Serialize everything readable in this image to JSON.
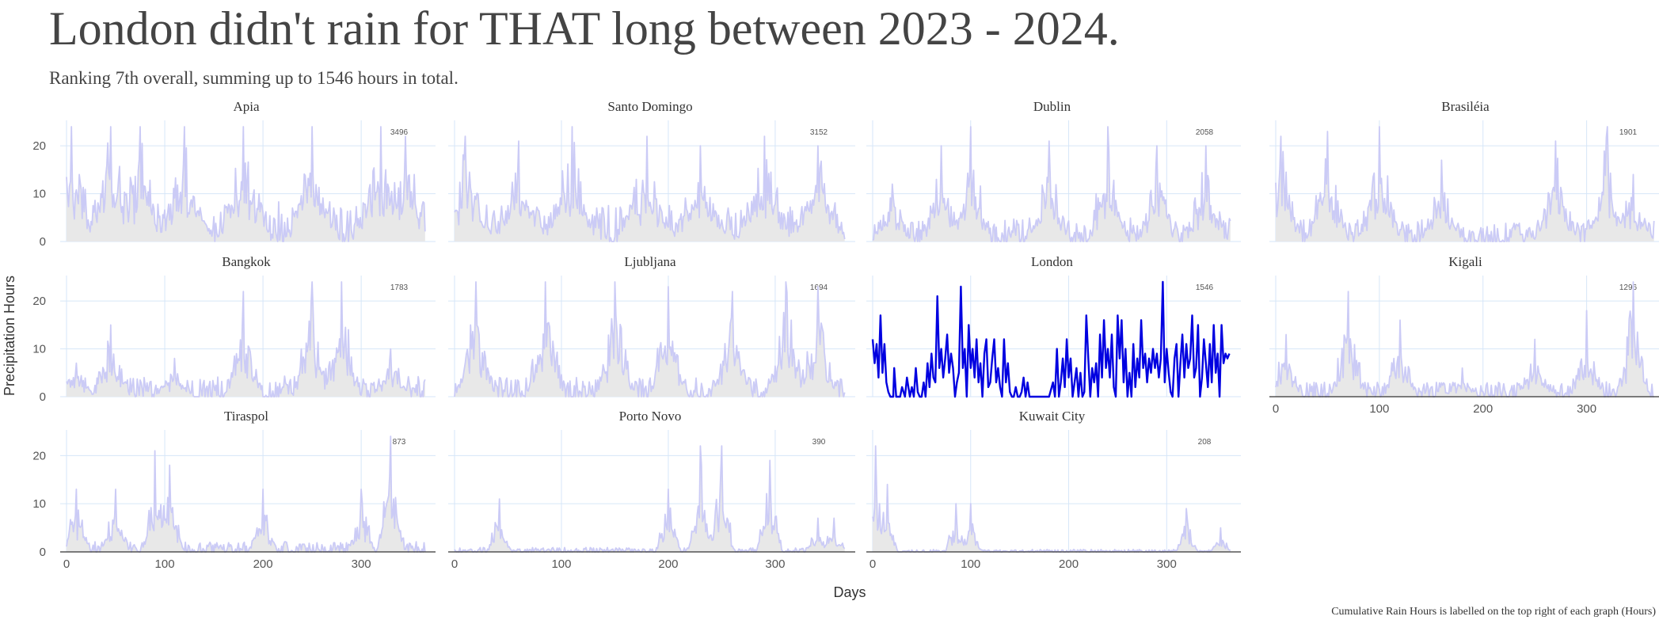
{
  "title": "London didn't rain for THAT long between 2023 - 2024.",
  "subtitle": "Ranking 7th overall, summing up to 1546 hours in total.",
  "caption": "Cumulative Rain Hours is labelled on the top right of each graph (Hours)",
  "colors": {
    "highlight_line": "#0000e0",
    "muted_line": "#cbcbf6",
    "area_fill": "#e8e8e8",
    "gridline": "#d6e6f8",
    "axis_line": "#333333"
  },
  "chart_data": {
    "type": "line",
    "layout": "facet grid, 4 columns, 3 rows",
    "xlabel": "Days",
    "ylabel": "Precipitation Hours",
    "xlim": [
      0,
      366
    ],
    "ylim": [
      0,
      24
    ],
    "x_ticks": [
      0,
      100,
      200,
      300
    ],
    "y_ticks": [
      0,
      10,
      20
    ],
    "grid": true,
    "legend": "none",
    "highlight": "London",
    "panels": [
      {
        "name": "Apia",
        "total": 3496,
        "peaks": [
          [
            5,
            24
          ],
          [
            45,
            24
          ],
          [
            75,
            24
          ],
          [
            120,
            24
          ],
          [
            180,
            24
          ],
          [
            250,
            24
          ],
          [
            320,
            24
          ],
          [
            345,
            22
          ]
        ]
      },
      {
        "name": "Santo Domingo",
        "total": 3152,
        "peaks": [
          [
            10,
            22
          ],
          [
            60,
            21
          ],
          [
            110,
            24
          ],
          [
            180,
            22
          ],
          [
            230,
            20
          ],
          [
            290,
            22
          ],
          [
            340,
            20
          ]
        ]
      },
      {
        "name": "Dublin",
        "total": 2058,
        "peaks": [
          [
            20,
            12
          ],
          [
            70,
            20
          ],
          [
            100,
            24
          ],
          [
            180,
            21
          ],
          [
            240,
            24
          ],
          [
            290,
            20
          ],
          [
            340,
            20
          ]
        ]
      },
      {
        "name": "Brasiléia",
        "total": 1901,
        "peaks": [
          [
            5,
            22
          ],
          [
            50,
            23
          ],
          [
            100,
            24
          ],
          [
            160,
            17
          ],
          [
            270,
            21
          ],
          [
            320,
            24
          ],
          [
            345,
            14
          ]
        ]
      },
      {
        "name": "Bangkok",
        "total": 1783,
        "peaks": [
          [
            10,
            7
          ],
          [
            45,
            15
          ],
          [
            110,
            8
          ],
          [
            180,
            22
          ],
          [
            250,
            24
          ],
          [
            280,
            24
          ],
          [
            330,
            10
          ]
        ]
      },
      {
        "name": "Ljubljana",
        "total": 1694,
        "peaks": [
          [
            20,
            24
          ],
          [
            85,
            24
          ],
          [
            150,
            24
          ],
          [
            200,
            23
          ],
          [
            260,
            22
          ],
          [
            310,
            24
          ],
          [
            340,
            23
          ]
        ]
      },
      {
        "name": "London",
        "total": 1546,
        "series": [
          [
            0,
            12
          ],
          [
            2,
            7
          ],
          [
            4,
            11
          ],
          [
            6,
            4
          ],
          [
            8,
            17
          ],
          [
            10,
            5
          ],
          [
            12,
            11
          ],
          [
            14,
            3
          ],
          [
            16,
            1
          ],
          [
            18,
            0
          ],
          [
            21,
            0
          ],
          [
            22,
            6
          ],
          [
            24,
            0
          ],
          [
            28,
            0
          ],
          [
            30,
            2
          ],
          [
            33,
            0
          ],
          [
            35,
            4
          ],
          [
            38,
            0
          ],
          [
            40,
            2
          ],
          [
            42,
            0
          ],
          [
            44,
            6
          ],
          [
            46,
            1
          ],
          [
            48,
            0
          ],
          [
            50,
            0
          ],
          [
            52,
            3
          ],
          [
            54,
            0
          ],
          [
            56,
            7
          ],
          [
            58,
            2
          ],
          [
            60,
            9
          ],
          [
            62,
            4
          ],
          [
            64,
            3
          ],
          [
            66,
            21
          ],
          [
            68,
            6
          ],
          [
            70,
            10
          ],
          [
            72,
            4
          ],
          [
            74,
            8
          ],
          [
            76,
            13
          ],
          [
            78,
            5
          ],
          [
            80,
            9
          ],
          [
            82,
            6
          ],
          [
            84,
            0
          ],
          [
            86,
            3
          ],
          [
            88,
            5
          ],
          [
            90,
            23
          ],
          [
            92,
            6
          ],
          [
            94,
            10
          ],
          [
            96,
            0
          ],
          [
            98,
            15
          ],
          [
            100,
            6
          ],
          [
            102,
            10
          ],
          [
            104,
            4
          ],
          [
            106,
            12
          ],
          [
            108,
            3
          ],
          [
            110,
            7
          ],
          [
            112,
            0
          ],
          [
            114,
            9
          ],
          [
            116,
            12
          ],
          [
            118,
            2
          ],
          [
            120,
            3
          ],
          [
            122,
            8
          ],
          [
            124,
            12
          ],
          [
            126,
            3
          ],
          [
            128,
            6
          ],
          [
            130,
            2
          ],
          [
            132,
            0
          ],
          [
            134,
            12
          ],
          [
            136,
            3
          ],
          [
            138,
            7
          ],
          [
            140,
            1
          ],
          [
            142,
            0
          ],
          [
            144,
            0
          ],
          [
            146,
            2
          ],
          [
            148,
            0
          ],
          [
            150,
            0
          ],
          [
            152,
            1
          ],
          [
            154,
            4
          ],
          [
            156,
            0
          ],
          [
            158,
            3
          ],
          [
            160,
            0
          ],
          [
            170,
            0
          ],
          [
            180,
            0
          ],
          [
            184,
            3
          ],
          [
            186,
            0
          ],
          [
            188,
            10
          ],
          [
            190,
            0
          ],
          [
            192,
            3
          ],
          [
            194,
            8
          ],
          [
            196,
            2
          ],
          [
            198,
            12
          ],
          [
            200,
            4
          ],
          [
            202,
            8
          ],
          [
            204,
            0
          ],
          [
            206,
            3
          ],
          [
            208,
            6
          ],
          [
            210,
            0
          ],
          [
            212,
            5
          ],
          [
            214,
            0
          ],
          [
            216,
            1
          ],
          [
            218,
            17
          ],
          [
            220,
            8
          ],
          [
            222,
            0
          ],
          [
            224,
            6
          ],
          [
            226,
            3
          ],
          [
            228,
            7
          ],
          [
            230,
            0
          ],
          [
            232,
            13
          ],
          [
            234,
            4
          ],
          [
            236,
            16
          ],
          [
            238,
            6
          ],
          [
            240,
            10
          ],
          [
            242,
            4
          ],
          [
            244,
            13
          ],
          [
            246,
            2
          ],
          [
            248,
            0
          ],
          [
            250,
            17
          ],
          [
            252,
            8
          ],
          [
            254,
            16
          ],
          [
            256,
            3
          ],
          [
            258,
            10
          ],
          [
            260,
            0
          ],
          [
            262,
            5
          ],
          [
            264,
            0
          ],
          [
            266,
            11
          ],
          [
            268,
            2
          ],
          [
            270,
            8
          ],
          [
            272,
            4
          ],
          [
            274,
            16
          ],
          [
            276,
            6
          ],
          [
            278,
            9
          ],
          [
            280,
            3
          ],
          [
            282,
            8
          ],
          [
            284,
            5
          ],
          [
            286,
            10
          ],
          [
            288,
            6
          ],
          [
            290,
            9
          ],
          [
            292,
            4
          ],
          [
            294,
            8
          ],
          [
            296,
            24
          ],
          [
            298,
            3
          ],
          [
            300,
            10
          ],
          [
            302,
            5
          ],
          [
            304,
            1
          ],
          [
            306,
            0
          ],
          [
            308,
            8
          ],
          [
            310,
            11
          ],
          [
            312,
            0
          ],
          [
            314,
            7
          ],
          [
            316,
            13
          ],
          [
            318,
            4
          ],
          [
            320,
            11
          ],
          [
            322,
            6
          ],
          [
            324,
            8
          ],
          [
            326,
            17
          ],
          [
            328,
            4
          ],
          [
            330,
            6
          ],
          [
            332,
            15
          ],
          [
            334,
            0
          ],
          [
            336,
            4
          ],
          [
            338,
            12
          ],
          [
            340,
            7
          ],
          [
            342,
            2
          ],
          [
            344,
            11
          ],
          [
            346,
            3
          ],
          [
            348,
            15
          ],
          [
            350,
            5
          ],
          [
            352,
            9
          ],
          [
            354,
            0
          ],
          [
            356,
            15
          ],
          [
            358,
            7
          ],
          [
            360,
            9
          ],
          [
            362,
            8
          ],
          [
            364,
            9
          ]
        ]
      },
      {
        "name": "Kigali",
        "total": 1296,
        "peaks": [
          [
            10,
            13
          ],
          [
            70,
            22
          ],
          [
            120,
            16
          ],
          [
            180,
            6
          ],
          [
            250,
            12
          ],
          [
            300,
            18
          ],
          [
            345,
            24
          ]
        ]
      },
      {
        "name": "Tiraspol",
        "total": 873,
        "peaks": [
          [
            10,
            13
          ],
          [
            50,
            13
          ],
          [
            90,
            21
          ],
          [
            105,
            18
          ],
          [
            200,
            13
          ],
          [
            300,
            13
          ],
          [
            330,
            24
          ]
        ]
      },
      {
        "name": "Porto Novo",
        "total": 390,
        "peaks": [
          [
            42,
            11
          ],
          [
            200,
            13
          ],
          [
            230,
            22
          ],
          [
            250,
            22
          ],
          [
            295,
            19
          ],
          [
            340,
            7
          ],
          [
            355,
            7
          ]
        ]
      },
      {
        "name": "Kuwait City",
        "total": 208,
        "peaks": [
          [
            3,
            22
          ],
          [
            15,
            14
          ],
          [
            85,
            10
          ],
          [
            100,
            10
          ],
          [
            320,
            9
          ],
          [
            355,
            5
          ]
        ]
      }
    ]
  }
}
